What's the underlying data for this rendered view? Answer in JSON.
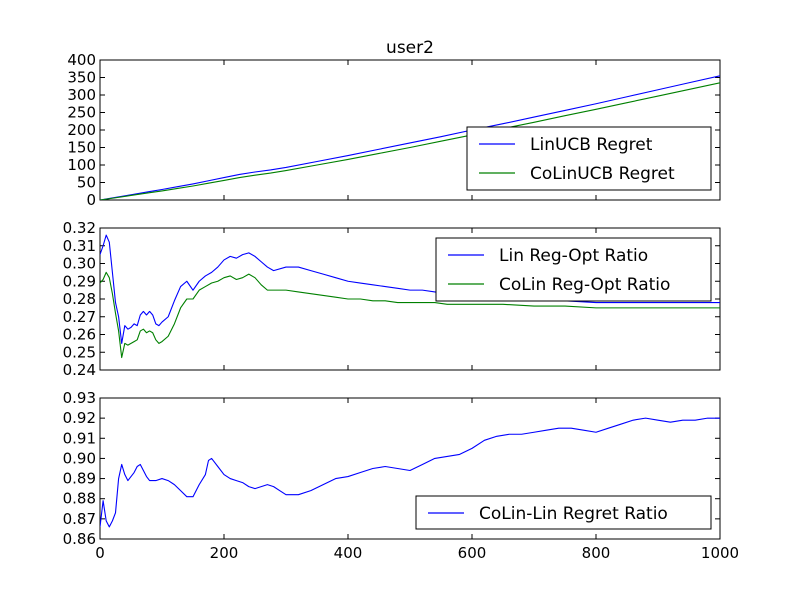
{
  "chart_data": [
    {
      "type": "line",
      "title": "user2",
      "xlabel": "",
      "ylabel": "",
      "xlim": [
        0,
        1000
      ],
      "ylim": [
        0,
        400
      ],
      "yticks": [
        0,
        50,
        100,
        150,
        200,
        250,
        300,
        350,
        400
      ],
      "ytick_labels": [
        "0",
        "50",
        "100",
        "150",
        "200",
        "250",
        "300",
        "350",
        "400"
      ],
      "show_xtick_labels": false,
      "legend": {
        "position": "lower-right"
      },
      "series": [
        {
          "name": "LinUCB Regret",
          "color": "#0000ff",
          "x": [
            0,
            20,
            50,
            80,
            100,
            125,
            150,
            175,
            200,
            225,
            250,
            275,
            300,
            350,
            400,
            450,
            500,
            550,
            600,
            650,
            700,
            750,
            800,
            850,
            900,
            950,
            1000
          ],
          "y": [
            0,
            6,
            15,
            24,
            30,
            38,
            46,
            55,
            64,
            73,
            80,
            86,
            93,
            110,
            127,
            145,
            163,
            181,
            200,
            218,
            237,
            256,
            275,
            295,
            315,
            335,
            355
          ]
        },
        {
          "name": "CoLinUCB Regret",
          "color": "#008000",
          "x": [
            0,
            20,
            50,
            80,
            100,
            125,
            150,
            175,
            200,
            225,
            250,
            275,
            300,
            350,
            400,
            450,
            500,
            550,
            600,
            650,
            700,
            750,
            800,
            850,
            900,
            950,
            1000
          ],
          "y": [
            0,
            5,
            13,
            21,
            26,
            33,
            40,
            48,
            56,
            64,
            71,
            77,
            84,
            100,
            116,
            133,
            150,
            168,
            186,
            204,
            222,
            241,
            259,
            278,
            297,
            316,
            335
          ]
        }
      ]
    },
    {
      "type": "line",
      "title": "",
      "xlabel": "",
      "ylabel": "",
      "xlim": [
        0,
        1000
      ],
      "ylim": [
        0.24,
        0.32
      ],
      "yticks": [
        0.24,
        0.25,
        0.26,
        0.27,
        0.28,
        0.29,
        0.3,
        0.31,
        0.32
      ],
      "ytick_labels": [
        "0.24",
        "0.25",
        "0.26",
        "0.27",
        "0.28",
        "0.29",
        "0.30",
        "0.31",
        "0.32"
      ],
      "show_xtick_labels": false,
      "legend": {
        "position": "upper-right"
      },
      "series": [
        {
          "name": "Lin Reg-Opt Ratio",
          "color": "#0000ff",
          "x": [
            0,
            5,
            10,
            15,
            20,
            25,
            30,
            35,
            40,
            45,
            50,
            55,
            60,
            65,
            70,
            75,
            80,
            85,
            90,
            95,
            100,
            110,
            120,
            130,
            140,
            150,
            160,
            170,
            180,
            190,
            200,
            210,
            220,
            230,
            240,
            250,
            260,
            270,
            280,
            300,
            320,
            340,
            360,
            380,
            400,
            420,
            440,
            460,
            480,
            500,
            520,
            540,
            560,
            580,
            600,
            650,
            700,
            750,
            800,
            850,
            900,
            950,
            1000
          ],
          "y": [
            0.305,
            0.31,
            0.316,
            0.312,
            0.295,
            0.278,
            0.27,
            0.255,
            0.265,
            0.263,
            0.264,
            0.266,
            0.265,
            0.271,
            0.273,
            0.271,
            0.273,
            0.271,
            0.266,
            0.265,
            0.267,
            0.27,
            0.279,
            0.287,
            0.29,
            0.285,
            0.29,
            0.293,
            0.295,
            0.298,
            0.302,
            0.304,
            0.303,
            0.305,
            0.306,
            0.304,
            0.301,
            0.298,
            0.296,
            0.298,
            0.298,
            0.296,
            0.294,
            0.292,
            0.29,
            0.289,
            0.288,
            0.287,
            0.286,
            0.285,
            0.285,
            0.284,
            0.283,
            0.283,
            0.283,
            0.281,
            0.28,
            0.279,
            0.278,
            0.278,
            0.278,
            0.278,
            0.278
          ]
        },
        {
          "name": "CoLin Reg-Opt Ratio",
          "color": "#008000",
          "x": [
            0,
            5,
            10,
            15,
            20,
            25,
            30,
            35,
            40,
            45,
            50,
            55,
            60,
            65,
            70,
            75,
            80,
            85,
            90,
            95,
            100,
            110,
            120,
            130,
            140,
            150,
            160,
            170,
            180,
            190,
            200,
            210,
            220,
            230,
            240,
            250,
            260,
            270,
            280,
            300,
            320,
            340,
            360,
            380,
            400,
            420,
            440,
            460,
            480,
            500,
            520,
            540,
            560,
            580,
            600,
            650,
            700,
            750,
            800,
            850,
            900,
            950,
            1000
          ],
          "y": [
            0.289,
            0.291,
            0.295,
            0.292,
            0.283,
            0.272,
            0.262,
            0.247,
            0.255,
            0.254,
            0.255,
            0.256,
            0.257,
            0.262,
            0.263,
            0.261,
            0.262,
            0.261,
            0.257,
            0.255,
            0.256,
            0.259,
            0.266,
            0.275,
            0.28,
            0.28,
            0.285,
            0.287,
            0.289,
            0.29,
            0.292,
            0.293,
            0.291,
            0.292,
            0.294,
            0.292,
            0.288,
            0.285,
            0.285,
            0.285,
            0.284,
            0.283,
            0.282,
            0.281,
            0.28,
            0.28,
            0.279,
            0.279,
            0.278,
            0.278,
            0.278,
            0.278,
            0.277,
            0.277,
            0.277,
            0.277,
            0.276,
            0.276,
            0.275,
            0.275,
            0.275,
            0.275,
            0.275
          ]
        }
      ]
    },
    {
      "type": "line",
      "title": "",
      "xlabel": "",
      "ylabel": "",
      "xlim": [
        0,
        1000
      ],
      "ylim": [
        0.86,
        0.93
      ],
      "xticks": [
        0,
        200,
        400,
        600,
        800,
        1000
      ],
      "xtick_labels": [
        "0",
        "200",
        "400",
        "600",
        "800",
        "1000"
      ],
      "yticks": [
        0.86,
        0.87,
        0.88,
        0.89,
        0.9,
        0.91,
        0.92,
        0.93
      ],
      "ytick_labels": [
        "0.86",
        "0.87",
        "0.88",
        "0.89",
        "0.90",
        "0.91",
        "0.92",
        "0.93"
      ],
      "show_xtick_labels": true,
      "legend": {
        "position": "lower-right"
      },
      "series": [
        {
          "name": "CoLin-Lin Regret Ratio",
          "color": "#0000ff",
          "x": [
            0,
            5,
            10,
            15,
            20,
            25,
            30,
            35,
            40,
            45,
            50,
            55,
            60,
            65,
            70,
            75,
            80,
            90,
            100,
            110,
            120,
            130,
            140,
            150,
            160,
            170,
            175,
            180,
            185,
            190,
            200,
            210,
            220,
            230,
            240,
            250,
            260,
            270,
            280,
            290,
            300,
            320,
            340,
            360,
            380,
            400,
            420,
            440,
            460,
            480,
            500,
            520,
            540,
            560,
            580,
            600,
            620,
            640,
            660,
            680,
            700,
            720,
            740,
            760,
            780,
            800,
            820,
            840,
            860,
            880,
            900,
            920,
            940,
            960,
            980,
            1000
          ],
          "y": [
            0.866,
            0.879,
            0.869,
            0.866,
            0.869,
            0.873,
            0.89,
            0.897,
            0.892,
            0.889,
            0.891,
            0.893,
            0.896,
            0.897,
            0.894,
            0.891,
            0.889,
            0.889,
            0.89,
            0.889,
            0.887,
            0.884,
            0.881,
            0.881,
            0.887,
            0.892,
            0.899,
            0.9,
            0.898,
            0.896,
            0.892,
            0.89,
            0.889,
            0.888,
            0.886,
            0.885,
            0.886,
            0.887,
            0.886,
            0.884,
            0.882,
            0.882,
            0.884,
            0.887,
            0.89,
            0.891,
            0.893,
            0.895,
            0.896,
            0.895,
            0.894,
            0.897,
            0.9,
            0.901,
            0.902,
            0.905,
            0.909,
            0.911,
            0.912,
            0.912,
            0.913,
            0.914,
            0.915,
            0.915,
            0.914,
            0.913,
            0.915,
            0.917,
            0.919,
            0.92,
            0.919,
            0.918,
            0.919,
            0.919,
            0.92,
            0.92
          ]
        }
      ]
    }
  ]
}
